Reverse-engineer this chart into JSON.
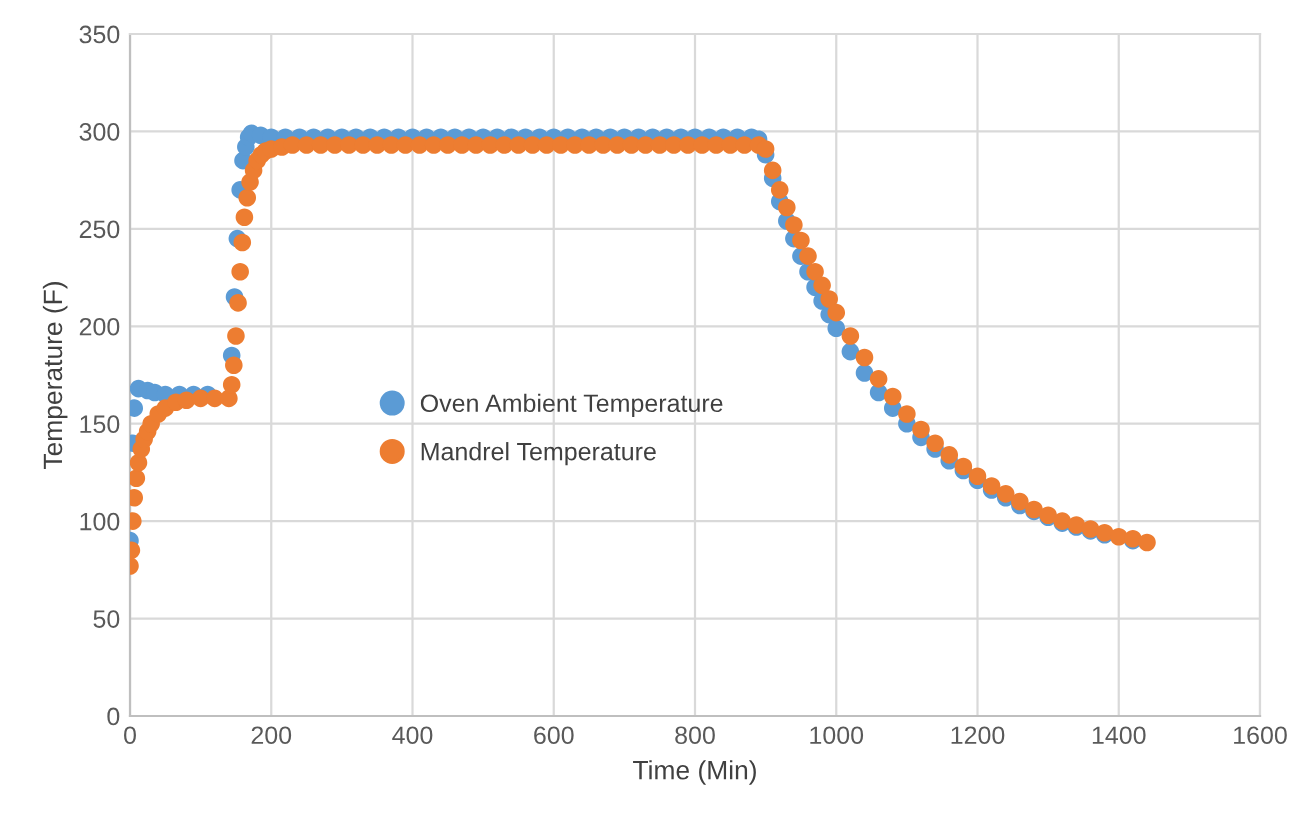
{
  "chart_data": {
    "type": "scatter",
    "xlabel": "Time (Min)",
    "ylabel": "Temperature (F)",
    "xlim": [
      0,
      1600
    ],
    "xticks": [
      0,
      200,
      400,
      600,
      800,
      1000,
      1200,
      1400,
      1600
    ],
    "ylim": [
      0,
      350
    ],
    "yticks": [
      0,
      50,
      100,
      150,
      200,
      250,
      300,
      350
    ],
    "grid": true,
    "legend": "left",
    "marker": "circle",
    "series": [
      {
        "name": "Oven Ambient Temperature",
        "color": "#5b9bd5",
        "x": [
          0,
          4,
          6,
          12,
          25,
          35,
          50,
          70,
          90,
          110,
          144,
          148,
          152,
          156,
          160,
          164,
          168,
          172,
          185,
          200,
          220,
          240,
          260,
          280,
          300,
          320,
          340,
          360,
          380,
          400,
          420,
          440,
          460,
          480,
          500,
          520,
          540,
          560,
          580,
          600,
          620,
          640,
          660,
          680,
          700,
          720,
          740,
          760,
          780,
          800,
          820,
          840,
          860,
          880,
          890,
          900,
          910,
          920,
          930,
          940,
          950,
          960,
          970,
          980,
          990,
          1000,
          1020,
          1040,
          1060,
          1080,
          1100,
          1120,
          1140,
          1160,
          1180,
          1200,
          1220,
          1240,
          1260,
          1280,
          1300,
          1320,
          1340,
          1360,
          1380,
          1400,
          1420
        ],
        "values": [
          90,
          140,
          158,
          168,
          167,
          166,
          165,
          165,
          165,
          165,
          185,
          215,
          245,
          270,
          285,
          292,
          297,
          299,
          298,
          297,
          297,
          297,
          297,
          297,
          297,
          297,
          297,
          297,
          297,
          297,
          297,
          297,
          297,
          297,
          297,
          297,
          297,
          297,
          297,
          297,
          297,
          297,
          297,
          297,
          297,
          297,
          297,
          297,
          297,
          297,
          297,
          297,
          297,
          297,
          296,
          288,
          276,
          264,
          254,
          245,
          236,
          228,
          220,
          213,
          206,
          199,
          187,
          176,
          166,
          158,
          150,
          143,
          137,
          131,
          126,
          121,
          116,
          112,
          108,
          105,
          102,
          99,
          97,
          95,
          93,
          null,
          90
        ]
      },
      {
        "name": "Mandrel Temperature",
        "color": "#ed7d31",
        "x": [
          0,
          2,
          4,
          6,
          9,
          12,
          16,
          20,
          25,
          30,
          40,
          50,
          65,
          80,
          100,
          120,
          140,
          144,
          147,
          150,
          153,
          156,
          159,
          162,
          166,
          170,
          175,
          180,
          186,
          192,
          200,
          215,
          230,
          250,
          270,
          290,
          310,
          330,
          350,
          370,
          390,
          410,
          430,
          450,
          470,
          490,
          510,
          530,
          550,
          570,
          590,
          610,
          630,
          650,
          670,
          690,
          710,
          730,
          750,
          770,
          790,
          810,
          830,
          850,
          870,
          890,
          900,
          910,
          920,
          930,
          940,
          950,
          960,
          970,
          980,
          990,
          1000,
          1020,
          1040,
          1060,
          1080,
          1100,
          1120,
          1140,
          1160,
          1180,
          1200,
          1220,
          1240,
          1260,
          1280,
          1300,
          1320,
          1340,
          1360,
          1380,
          1400,
          1420,
          1440
        ],
        "values": [
          77,
          85,
          100,
          112,
          122,
          130,
          137,
          142,
          146,
          150,
          155,
          158,
          161,
          162,
          163,
          163,
          163,
          170,
          180,
          195,
          212,
          228,
          243,
          256,
          266,
          274,
          280,
          285,
          288,
          290,
          291,
          292,
          293,
          293,
          293,
          293,
          293,
          293,
          293,
          293,
          293,
          293,
          293,
          293,
          293,
          293,
          293,
          293,
          293,
          293,
          293,
          293,
          293,
          293,
          293,
          293,
          293,
          293,
          293,
          293,
          293,
          293,
          293,
          293,
          293,
          293,
          291,
          280,
          270,
          261,
          252,
          244,
          236,
          228,
          221,
          214,
          207,
          195,
          184,
          173,
          164,
          155,
          147,
          140,
          134,
          128,
          123,
          118,
          114,
          110,
          106,
          103,
          100,
          98,
          96,
          94,
          92,
          91,
          89
        ]
      }
    ]
  }
}
